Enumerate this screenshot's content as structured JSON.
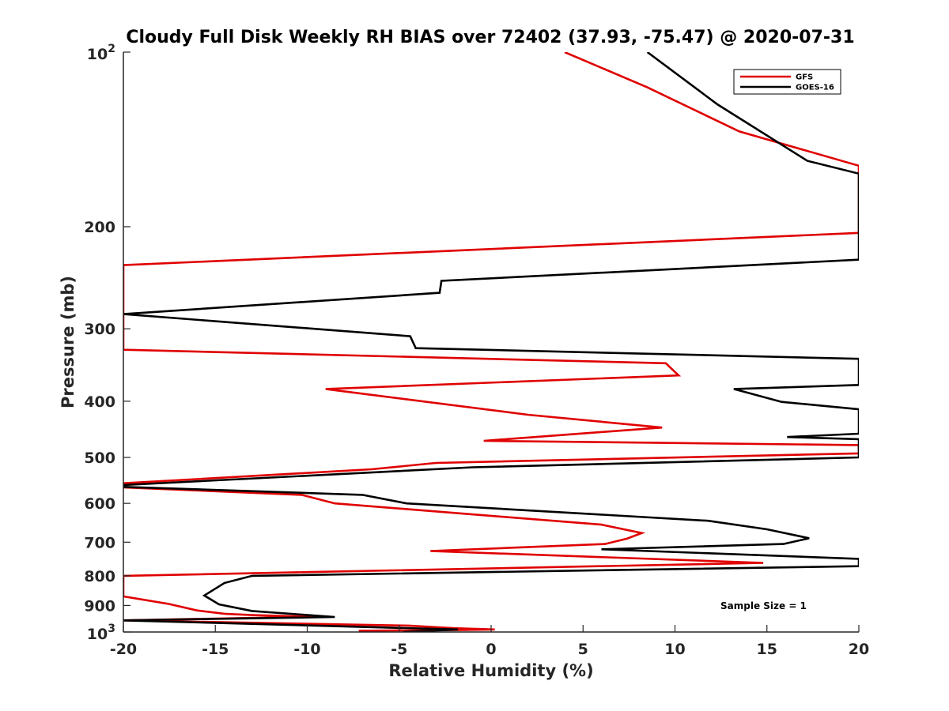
{
  "chart_data": {
    "type": "line",
    "title": "Cloudy Full Disk Weekly RH BIAS over 72402 (37.93, -75.47) @ 2020-07-31",
    "xlabel": "Relative Humidity (%)",
    "ylabel": "Pressure (mb)",
    "xlim": [
      -20,
      20
    ],
    "ylim": [
      100,
      1000
    ],
    "y_scale": "log",
    "y_reversed": true,
    "grid": false,
    "legend_position": "top-right",
    "x_ticks": [
      "-20",
      "-15",
      "-10",
      "-5",
      "0",
      "5",
      "10",
      "15",
      "20"
    ],
    "y_ticks": [
      {
        "base": "10",
        "exp": "2"
      },
      {
        "text": "200"
      },
      {
        "text": "300"
      },
      {
        "text": "400"
      },
      {
        "text": "500"
      },
      {
        "text": "600"
      },
      {
        "text": "700"
      },
      {
        "text": "800"
      },
      {
        "text": "900"
      },
      {
        "base": "10",
        "exp": "3"
      }
    ],
    "annotation": "Sample Size = 1",
    "series": [
      {
        "name": "GFS",
        "color": "#e00000",
        "points": [
          [
            4.0,
            100
          ],
          [
            8.5,
            115
          ],
          [
            13.5,
            137
          ],
          [
            20,
            157
          ],
          [
            20,
            205
          ],
          [
            -20,
            233
          ],
          [
            -20,
            326
          ],
          [
            9.5,
            344
          ],
          [
            10.2,
            361
          ],
          [
            -9.0,
            381
          ],
          [
            2.0,
            422
          ],
          [
            9.3,
            444
          ],
          [
            -0.4,
            468
          ],
          [
            20,
            476
          ],
          [
            20,
            492
          ],
          [
            -3.0,
            511
          ],
          [
            -6.5,
            524
          ],
          [
            -20,
            554
          ],
          [
            -20,
            563
          ],
          [
            -10.3,
            580
          ],
          [
            -8.5,
            600
          ],
          [
            6.0,
            653
          ],
          [
            8.2,
            675
          ],
          [
            7.4,
            690
          ],
          [
            6.2,
            705
          ],
          [
            -3.3,
            725
          ],
          [
            14.8,
            760
          ],
          [
            -20,
            800
          ],
          [
            -20,
            868
          ],
          [
            -17.5,
            895
          ],
          [
            -16.0,
            918
          ],
          [
            -14.5,
            930
          ],
          [
            -13.0,
            935
          ],
          [
            -11.5,
            938
          ],
          [
            -9.7,
            941
          ],
          [
            -20,
            955
          ],
          [
            -4.5,
            975
          ],
          [
            -2.0,
            985
          ],
          [
            0.2,
            990
          ],
          [
            -1.5,
            992
          ],
          [
            -7.2,
            995
          ]
        ]
      },
      {
        "name": "GOES-16",
        "color": "#000000",
        "points": [
          [
            8.5,
            100
          ],
          [
            12.3,
            123
          ],
          [
            17.2,
            154
          ],
          [
            20,
            162
          ],
          [
            20,
            228
          ],
          [
            -2.7,
            248
          ],
          [
            -2.8,
            260
          ],
          [
            -20,
            283
          ],
          [
            -4.4,
            309
          ],
          [
            -4.1,
            324
          ],
          [
            20,
            338
          ],
          [
            20,
            375
          ],
          [
            13.2,
            381
          ],
          [
            15.8,
            401
          ],
          [
            20,
            413
          ],
          [
            20,
            455
          ],
          [
            16.1,
            461
          ],
          [
            20,
            465
          ],
          [
            20,
            500
          ],
          [
            -1.0,
            520
          ],
          [
            -20,
            558
          ],
          [
            -20,
            562
          ],
          [
            -7.0,
            580
          ],
          [
            -4.6,
            600
          ],
          [
            11.8,
            643
          ],
          [
            15.0,
            665
          ],
          [
            17.3,
            689
          ],
          [
            15.9,
            705
          ],
          [
            6.0,
            720
          ],
          [
            20,
            748
          ],
          [
            20,
            770
          ],
          [
            -13.0,
            800
          ],
          [
            -14.5,
            823
          ],
          [
            -15.6,
            865
          ],
          [
            -14.8,
            896
          ],
          [
            -13.0,
            920
          ],
          [
            -8.5,
            942
          ],
          [
            -20,
            955
          ],
          [
            -1.8,
            990
          ],
          [
            -4.8,
            1000
          ]
        ]
      }
    ]
  }
}
